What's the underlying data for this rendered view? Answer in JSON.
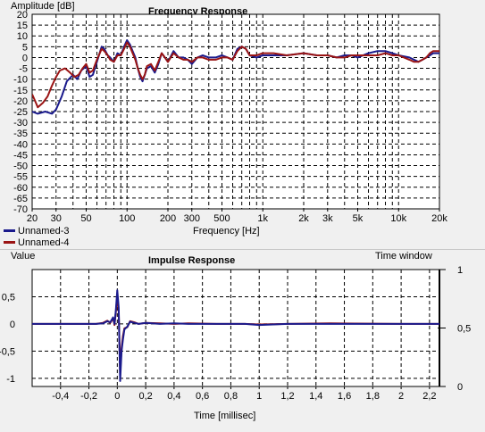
{
  "chart_data": [
    {
      "type": "line",
      "title": "Frequency Response",
      "ylabel": "Amplitude [dB]",
      "xlabel": "Frequency [Hz]",
      "xscale": "log",
      "xlim": [
        20,
        20000
      ],
      "ylim": [
        -70,
        20
      ],
      "grid": true,
      "legend_position": "bottom-left",
      "y_ticks": [
        "20",
        "15",
        "10",
        "5",
        "0",
        "-5",
        "-10",
        "-15",
        "-20",
        "-25",
        "-30",
        "-35",
        "-40",
        "-45",
        "-50",
        "-55",
        "-60",
        "-65",
        "-70"
      ],
      "x_ticks": [
        {
          "v": 20,
          "t": "20"
        },
        {
          "v": 30,
          "t": "30"
        },
        {
          "v": 50,
          "t": "50"
        },
        {
          "v": 100,
          "t": "100"
        },
        {
          "v": 200,
          "t": "200"
        },
        {
          "v": 300,
          "t": "300"
        },
        {
          "v": 500,
          "t": "500"
        },
        {
          "v": 1000,
          "t": "1k"
        },
        {
          "v": 2000,
          "t": "2k"
        },
        {
          "v": 3000,
          "t": "3k"
        },
        {
          "v": 5000,
          "t": "5k"
        },
        {
          "v": 10000,
          "t": "10k"
        },
        {
          "v": 20000,
          "t": "20k"
        }
      ],
      "series": [
        {
          "name": "Unnamed-3",
          "color": "#1a1a8c",
          "points": [
            [
              20,
              -25
            ],
            [
              22,
              -26
            ],
            [
              25,
              -25
            ],
            [
              28,
              -26
            ],
            [
              30,
              -24
            ],
            [
              33,
              -18
            ],
            [
              36,
              -11
            ],
            [
              40,
              -8
            ],
            [
              43,
              -10
            ],
            [
              46,
              -6
            ],
            [
              50,
              -4
            ],
            [
              53,
              -9
            ],
            [
              56,
              -8
            ],
            [
              60,
              -2
            ],
            [
              65,
              5
            ],
            [
              68,
              4
            ],
            [
              72,
              1
            ],
            [
              75,
              0
            ],
            [
              80,
              -2
            ],
            [
              85,
              2
            ],
            [
              90,
              1
            ],
            [
              95,
              5
            ],
            [
              100,
              8
            ],
            [
              105,
              6
            ],
            [
              110,
              3
            ],
            [
              115,
              0
            ],
            [
              120,
              -5
            ],
            [
              125,
              -9
            ],
            [
              130,
              -11
            ],
            [
              135,
              -8
            ],
            [
              140,
              -5
            ],
            [
              150,
              -4
            ],
            [
              160,
              -7
            ],
            [
              170,
              -3
            ],
            [
              180,
              2
            ],
            [
              190,
              0
            ],
            [
              200,
              -2
            ],
            [
              220,
              3
            ],
            [
              240,
              0
            ],
            [
              260,
              0
            ],
            [
              280,
              -1
            ],
            [
              300,
              -3
            ],
            [
              330,
              0
            ],
            [
              360,
              1
            ],
            [
              400,
              0
            ],
            [
              450,
              0
            ],
            [
              500,
              1
            ],
            [
              550,
              0
            ],
            [
              600,
              -1
            ],
            [
              650,
              4
            ],
            [
              700,
              5
            ],
            [
              750,
              4
            ],
            [
              800,
              1
            ],
            [
              900,
              0
            ],
            [
              1000,
              1
            ],
            [
              1200,
              1
            ],
            [
              1500,
              1
            ],
            [
              2000,
              2
            ],
            [
              2500,
              1
            ],
            [
              3000,
              1
            ],
            [
              3500,
              0
            ],
            [
              4000,
              1
            ],
            [
              4500,
              1
            ],
            [
              5000,
              0
            ],
            [
              6000,
              2
            ],
            [
              7000,
              3
            ],
            [
              8000,
              3
            ],
            [
              9000,
              2
            ],
            [
              10000,
              1
            ],
            [
              12000,
              0
            ],
            [
              13000,
              -1
            ],
            [
              14000,
              -2
            ],
            [
              15000,
              -1
            ],
            [
              16000,
              0
            ],
            [
              17000,
              1
            ],
            [
              18000,
              2
            ],
            [
              19000,
              2
            ],
            [
              20000,
              2
            ]
          ]
        },
        {
          "name": "Unnamed-4",
          "color": "#9a1414",
          "points": [
            [
              20,
              -17
            ],
            [
              21,
              -20
            ],
            [
              22,
              -23
            ],
            [
              24,
              -21
            ],
            [
              26,
              -18
            ],
            [
              28,
              -13
            ],
            [
              30,
              -9
            ],
            [
              32,
              -6
            ],
            [
              35,
              -5
            ],
            [
              38,
              -7
            ],
            [
              41,
              -9
            ],
            [
              44,
              -8
            ],
            [
              47,
              -5
            ],
            [
              50,
              -3
            ],
            [
              53,
              -7
            ],
            [
              56,
              -6
            ],
            [
              60,
              -1
            ],
            [
              65,
              4
            ],
            [
              68,
              3
            ],
            [
              72,
              1
            ],
            [
              75,
              -1
            ],
            [
              80,
              -2
            ],
            [
              85,
              1
            ],
            [
              90,
              1
            ],
            [
              95,
              4
            ],
            [
              100,
              7
            ],
            [
              105,
              5
            ],
            [
              110,
              2
            ],
            [
              115,
              -1
            ],
            [
              120,
              -5
            ],
            [
              125,
              -8
            ],
            [
              130,
              -10
            ],
            [
              135,
              -8
            ],
            [
              140,
              -4
            ],
            [
              150,
              -3
            ],
            [
              160,
              -6
            ],
            [
              170,
              -2
            ],
            [
              180,
              2
            ],
            [
              190,
              0
            ],
            [
              200,
              -2
            ],
            [
              220,
              2
            ],
            [
              240,
              0
            ],
            [
              260,
              -1
            ],
            [
              280,
              -1
            ],
            [
              300,
              -2
            ],
            [
              330,
              0
            ],
            [
              360,
              0
            ],
            [
              400,
              -1
            ],
            [
              450,
              -1
            ],
            [
              500,
              0
            ],
            [
              550,
              0
            ],
            [
              600,
              -1
            ],
            [
              650,
              3
            ],
            [
              700,
              5
            ],
            [
              750,
              4
            ],
            [
              800,
              1
            ],
            [
              900,
              1
            ],
            [
              1000,
              2
            ],
            [
              1200,
              2
            ],
            [
              1500,
              1
            ],
            [
              2000,
              2
            ],
            [
              2500,
              1
            ],
            [
              3000,
              1
            ],
            [
              3500,
              0
            ],
            [
              4000,
              0
            ],
            [
              4500,
              1
            ],
            [
              5000,
              1
            ],
            [
              6000,
              1
            ],
            [
              7000,
              1
            ],
            [
              8000,
              2
            ],
            [
              9000,
              1
            ],
            [
              10000,
              1
            ],
            [
              12000,
              -1
            ],
            [
              13000,
              -2
            ],
            [
              14000,
              -2
            ],
            [
              15000,
              -1
            ],
            [
              16000,
              0
            ],
            [
              17000,
              2
            ],
            [
              18000,
              3
            ],
            [
              19000,
              3
            ],
            [
              20000,
              3
            ]
          ]
        }
      ]
    },
    {
      "type": "line",
      "title": "Impulse Response",
      "ylabel": "Value",
      "xlabel": "Time [millisec]",
      "xlim": [
        -0.6,
        2.27
      ],
      "ylim": [
        -1.15,
        1.0
      ],
      "grid": true,
      "y_ticks": [
        {
          "v": 0.5,
          "t": "0,5"
        },
        {
          "v": 0,
          "t": "0"
        },
        {
          "v": -0.5,
          "t": "-0,5"
        },
        {
          "v": -1,
          "t": "-1"
        }
      ],
      "x_ticks": [
        {
          "v": -0.4,
          "t": "-0,4"
        },
        {
          "v": -0.2,
          "t": "-0,2"
        },
        {
          "v": 0,
          "t": "0"
        },
        {
          "v": 0.2,
          "t": "0,2"
        },
        {
          "v": 0.4,
          "t": "0,4"
        },
        {
          "v": 0.6,
          "t": "0,6"
        },
        {
          "v": 0.8,
          "t": "0,8"
        },
        {
          "v": 1,
          "t": "1"
        },
        {
          "v": 1.2,
          "t": "1,2"
        },
        {
          "v": 1.4,
          "t": "1,4"
        },
        {
          "v": 1.6,
          "t": "1,6"
        },
        {
          "v": 1.8,
          "t": "1,8"
        },
        {
          "v": 2,
          "t": "2"
        },
        {
          "v": 2.2,
          "t": "2,2"
        }
      ],
      "time_window": {
        "label": "Time window",
        "ylim": [
          0,
          1
        ],
        "ticks": [
          {
            "v": 1,
            "t": "1"
          },
          {
            "v": 0.5,
            "t": "0,5"
          },
          {
            "v": 0,
            "t": "0"
          }
        ]
      },
      "series": [
        {
          "name": "Unnamed-3",
          "color": "#1a1a8c",
          "points": [
            [
              -0.6,
              0
            ],
            [
              -0.15,
              0
            ],
            [
              -0.1,
              0.01
            ],
            [
              -0.07,
              0.05
            ],
            [
              -0.05,
              0.03
            ],
            [
              -0.03,
              0.12
            ],
            [
              -0.02,
              0.0
            ],
            [
              -0.01,
              0.25
            ],
            [
              0.0,
              0.62
            ],
            [
              0.01,
              0.3
            ],
            [
              0.015,
              -0.4
            ],
            [
              0.02,
              -1.05
            ],
            [
              0.03,
              -0.5
            ],
            [
              0.04,
              -0.28
            ],
            [
              0.05,
              -0.1
            ],
            [
              0.07,
              -0.05
            ],
            [
              0.09,
              0.04
            ],
            [
              0.12,
              0.02
            ],
            [
              0.15,
              0.0
            ],
            [
              0.2,
              0.02
            ],
            [
              0.3,
              0.0
            ],
            [
              0.4,
              0.01
            ],
            [
              0.5,
              0.0
            ],
            [
              0.7,
              0.0
            ],
            [
              0.9,
              0.0
            ],
            [
              1.0,
              -0.02
            ],
            [
              1.2,
              0.0
            ],
            [
              1.5,
              0.0
            ],
            [
              2.0,
              0.0
            ],
            [
              2.27,
              0.0
            ]
          ]
        },
        {
          "name": "Unnamed-4",
          "color": "#9a1414",
          "points": [
            [
              -0.6,
              0
            ],
            [
              -0.15,
              0
            ],
            [
              -0.1,
              0.02
            ],
            [
              -0.07,
              0.06
            ],
            [
              -0.05,
              0.02
            ],
            [
              -0.03,
              0.1
            ],
            [
              -0.02,
              -0.02
            ],
            [
              -0.01,
              0.22
            ],
            [
              0.0,
              0.52
            ],
            [
              0.01,
              0.22
            ],
            [
              0.015,
              -0.3
            ],
            [
              0.02,
              -0.9
            ],
            [
              0.03,
              -0.45
            ],
            [
              0.04,
              -0.22
            ],
            [
              0.05,
              -0.08
            ],
            [
              0.07,
              -0.06
            ],
            [
              0.09,
              0.05
            ],
            [
              0.12,
              0.03
            ],
            [
              0.15,
              0.0
            ],
            [
              0.2,
              0.02
            ],
            [
              0.3,
              0.01
            ],
            [
              0.4,
              0.0
            ],
            [
              0.5,
              0.01
            ],
            [
              0.7,
              0.0
            ],
            [
              0.9,
              0.0
            ],
            [
              1.0,
              -0.01
            ],
            [
              1.2,
              0.0
            ],
            [
              1.5,
              0.01
            ],
            [
              2.0,
              0.0
            ],
            [
              2.27,
              0.0
            ]
          ]
        }
      ]
    }
  ]
}
